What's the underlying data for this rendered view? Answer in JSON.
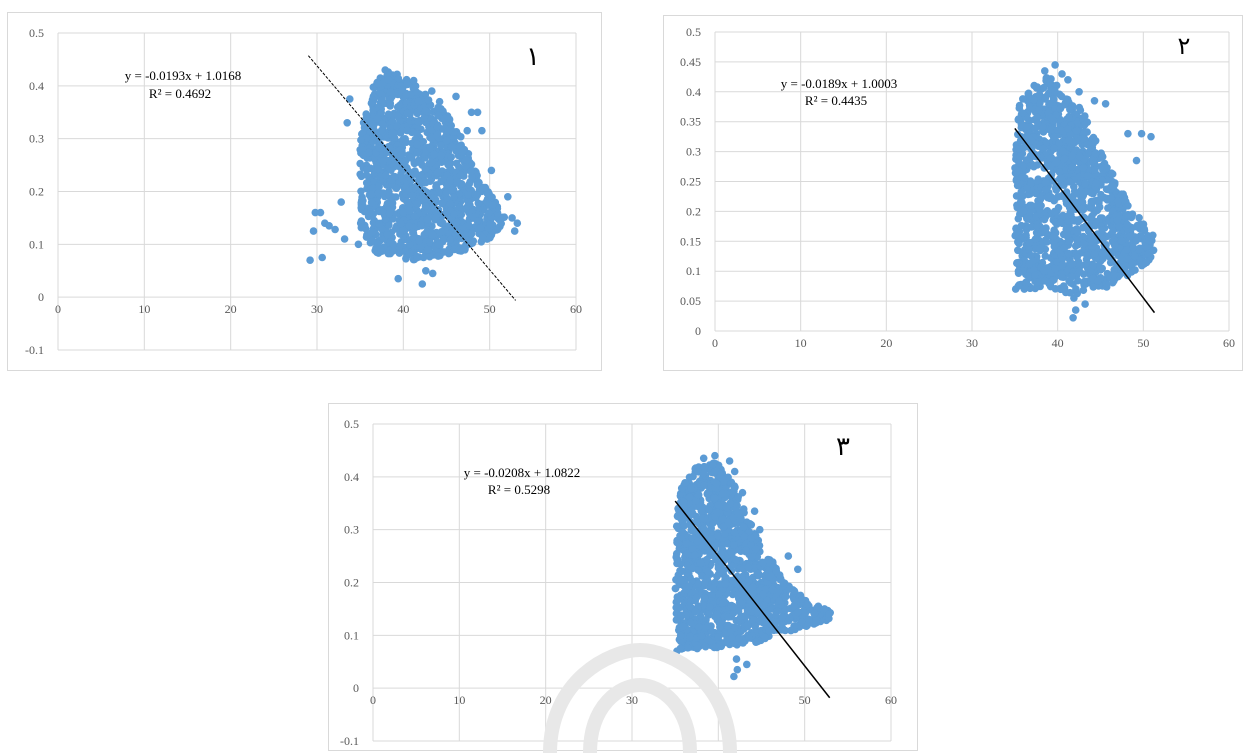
{
  "colors": {
    "marker": "#5b9bd5",
    "gridline": "#d9d9d9",
    "trendline": "#000000",
    "tick_text": "#595959",
    "watermark": "#e6e6e6"
  },
  "chart_data": [
    {
      "type": "scatter",
      "panel_label": "۱",
      "equation": "y = -0.0193x + 1.0168",
      "r_squared": "R² = 0.4692",
      "xlim": [
        0,
        60
      ],
      "ylim": [
        -0.1,
        0.5
      ],
      "x_ticks": [
        "0",
        "10",
        "20",
        "30",
        "40",
        "50",
        "60"
      ],
      "y_ticks": [
        "-0.1",
        "0",
        "0.1",
        "0.2",
        "0.3",
        "0.4",
        "0.5"
      ],
      "grid": true,
      "trendline": {
        "slope": -0.0193,
        "intercept": 1.0168,
        "x_range": [
          29,
          53
        ],
        "style": "dashed"
      },
      "cloud": [
        [
          36,
          0.39
        ],
        [
          38,
          0.43
        ],
        [
          40,
          0.42
        ],
        [
          43,
          0.38
        ],
        [
          46,
          0.33
        ],
        [
          49,
          0.22
        ],
        [
          52,
          0.15
        ],
        [
          51,
          0.12
        ],
        [
          46,
          0.08
        ],
        [
          41,
          0.07
        ],
        [
          37,
          0.08
        ],
        [
          35,
          0.12
        ],
        [
          35,
          0.2
        ],
        [
          35,
          0.3
        ]
      ],
      "points": [
        [
          29.2,
          0.07
        ],
        [
          29.6,
          0.125
        ],
        [
          29.8,
          0.16
        ],
        [
          30.4,
          0.16
        ],
        [
          30.6,
          0.075
        ],
        [
          30.9,
          0.14
        ],
        [
          31.4,
          0.135
        ],
        [
          32.1,
          0.128
        ],
        [
          32.8,
          0.18
        ],
        [
          33.2,
          0.11
        ],
        [
          33.5,
          0.33
        ],
        [
          33.8,
          0.375
        ],
        [
          34.8,
          0.1
        ],
        [
          35.4,
          0.33
        ],
        [
          39.4,
          0.035
        ],
        [
          42.2,
          0.025
        ],
        [
          42.6,
          0.05
        ],
        [
          43.4,
          0.045
        ],
        [
          43.3,
          0.39
        ],
        [
          44.2,
          0.37
        ],
        [
          46.1,
          0.38
        ],
        [
          47.4,
          0.315
        ],
        [
          47.9,
          0.35
        ],
        [
          48.6,
          0.35
        ],
        [
          49.1,
          0.315
        ],
        [
          50.2,
          0.24
        ],
        [
          52.1,
          0.19
        ],
        [
          52.6,
          0.15
        ],
        [
          53.2,
          0.14
        ],
        [
          52.9,
          0.125
        ],
        [
          41.2,
          0.41
        ],
        [
          37.9,
          0.43
        ]
      ]
    },
    {
      "type": "scatter",
      "panel_label": "۲",
      "equation": "y = -0.0189x + 1.0003",
      "r_squared": "R² = 0.4435",
      "xlim": [
        0,
        60
      ],
      "ylim": [
        0,
        0.5
      ],
      "x_ticks": [
        "0",
        "10",
        "20",
        "30",
        "40",
        "50",
        "60"
      ],
      "y_ticks": [
        "0",
        "0.05",
        "0.1",
        "0.15",
        "0.2",
        "0.25",
        "0.3",
        "0.35",
        "0.4",
        "0.45",
        "0.5"
      ],
      "grid": true,
      "trendline": {
        "slope": -0.0189,
        "intercept": 1.0003,
        "x_range": [
          35,
          51.3
        ],
        "style": "solid"
      },
      "cloud": [
        [
          35.5,
          0.38
        ],
        [
          37,
          0.41
        ],
        [
          39,
          0.43
        ],
        [
          41,
          0.39
        ],
        [
          43,
          0.37
        ],
        [
          45,
          0.3
        ],
        [
          47,
          0.25
        ],
        [
          49,
          0.2
        ],
        [
          51,
          0.16
        ],
        [
          51,
          0.12
        ],
        [
          47,
          0.08
        ],
        [
          43,
          0.06
        ],
        [
          38,
          0.07
        ],
        [
          35.5,
          0.07
        ],
        [
          35,
          0.15
        ],
        [
          35,
          0.28
        ]
      ],
      "points": [
        [
          35.1,
          0.07
        ],
        [
          35.4,
          0.075
        ],
        [
          36.1,
          0.07
        ],
        [
          41.8,
          0.022
        ],
        [
          42.1,
          0.035
        ],
        [
          41.9,
          0.055
        ],
        [
          43.2,
          0.045
        ],
        [
          38.5,
          0.435
        ],
        [
          39.7,
          0.445
        ],
        [
          40.5,
          0.43
        ],
        [
          42.5,
          0.4
        ],
        [
          44.3,
          0.385
        ],
        [
          45.6,
          0.38
        ],
        [
          48.2,
          0.33
        ],
        [
          49.2,
          0.285
        ],
        [
          49.8,
          0.33
        ],
        [
          50.9,
          0.325
        ],
        [
          51.1,
          0.16
        ],
        [
          51.2,
          0.135
        ],
        [
          41.2,
          0.42
        ]
      ]
    },
    {
      "type": "scatter",
      "panel_label": "۳",
      "equation": "y = -0.0208x + 1.0822",
      "r_squared": "R² = 0.5298",
      "xlim": [
        0,
        60
      ],
      "ylim": [
        -0.1,
        0.5
      ],
      "x_ticks": [
        "0",
        "10",
        "20",
        "30",
        "40",
        "50",
        "60"
      ],
      "y_ticks": [
        "-0.1",
        "0",
        "0.1",
        "0.2",
        "0.3",
        "0.4",
        "0.5"
      ],
      "grid": true,
      "trendline": {
        "slope": -0.0208,
        "intercept": 1.0822,
        "x_range": [
          35,
          52.9
        ],
        "style": "solid"
      },
      "cloud": [
        [
          35.5,
          0.38
        ],
        [
          37.5,
          0.42
        ],
        [
          39.5,
          0.43
        ],
        [
          41.5,
          0.4
        ],
        [
          43,
          0.34
        ],
        [
          45,
          0.27
        ],
        [
          48,
          0.2
        ],
        [
          51,
          0.16
        ],
        [
          53,
          0.145
        ],
        [
          53,
          0.13
        ],
        [
          47,
          0.1
        ],
        [
          43,
          0.08
        ],
        [
          39,
          0.075
        ],
        [
          35.5,
          0.07
        ],
        [
          35,
          0.15
        ],
        [
          35,
          0.28
        ]
      ],
      "points": [
        [
          35.2,
          0.07
        ],
        [
          35.6,
          0.075
        ],
        [
          41.8,
          0.022
        ],
        [
          42.2,
          0.035
        ],
        [
          42.1,
          0.055
        ],
        [
          43.3,
          0.045
        ],
        [
          38.3,
          0.435
        ],
        [
          39.6,
          0.44
        ],
        [
          41.3,
          0.43
        ],
        [
          41.9,
          0.41
        ],
        [
          42.8,
          0.37
        ],
        [
          44.2,
          0.335
        ],
        [
          44.8,
          0.3
        ],
        [
          48.1,
          0.25
        ],
        [
          49.2,
          0.225
        ],
        [
          52.3,
          0.15
        ],
        [
          52.8,
          0.14
        ],
        [
          47.5,
          0.2
        ]
      ]
    }
  ]
}
